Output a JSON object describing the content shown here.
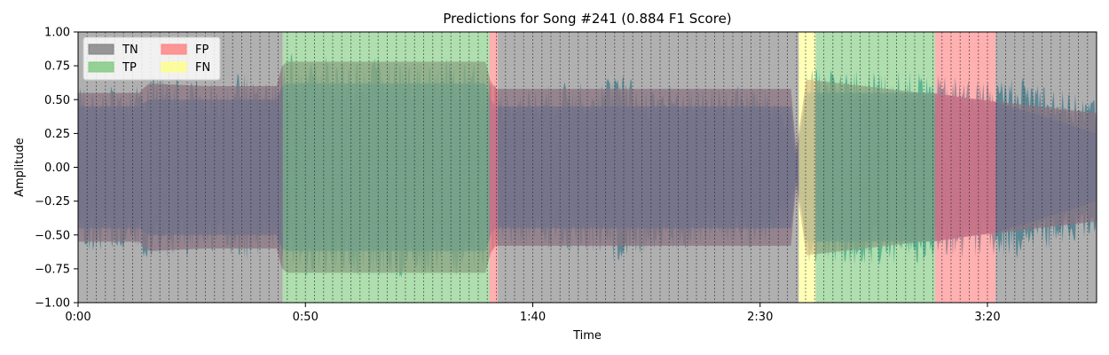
{
  "chart_data": {
    "type": "area",
    "title": "Predictions for Song #241 (0.884 F1 Score)",
    "xlabel": "Time",
    "ylabel": "Amplitude",
    "xlim": [
      0,
      224
    ],
    "ylim": [
      -1.0,
      1.0
    ],
    "x_ticks": [
      {
        "value": 0,
        "label": "0:00"
      },
      {
        "value": 50,
        "label": "0:50"
      },
      {
        "value": 100,
        "label": "1:40"
      },
      {
        "value": 150,
        "label": "2:30"
      },
      {
        "value": 200,
        "label": "3:20"
      }
    ],
    "y_ticks": [
      {
        "value": 1.0,
        "label": "1.00"
      },
      {
        "value": 0.75,
        "label": "0.75"
      },
      {
        "value": 0.5,
        "label": "0.50"
      },
      {
        "value": 0.25,
        "label": "0.25"
      },
      {
        "value": 0.0,
        "label": "0.00"
      },
      {
        "value": -0.25,
        "label": "−0.25"
      },
      {
        "value": -0.5,
        "label": "−0.50"
      },
      {
        "value": -0.75,
        "label": "−0.75"
      },
      {
        "value": -1.0,
        "label": "−1.00"
      }
    ],
    "legend": {
      "placement": "top-left",
      "columns": 2,
      "items": [
        {
          "label": "TN",
          "color": "#808080"
        },
        {
          "label": "TP",
          "color": "#7ec97e"
        },
        {
          "label": "FP",
          "color": "#ff8080"
        },
        {
          "label": "FN",
          "color": "#ffff8a"
        }
      ]
    },
    "segments": [
      {
        "start": 0,
        "end": 45,
        "class": "TN"
      },
      {
        "start": 45,
        "end": 90.5,
        "class": "TP"
      },
      {
        "start": 90.5,
        "end": 92.3,
        "class": "FP"
      },
      {
        "start": 92.3,
        "end": 158.5,
        "class": "TN"
      },
      {
        "start": 158.5,
        "end": 162.2,
        "class": "FN"
      },
      {
        "start": 162.2,
        "end": 188.5,
        "class": "TP"
      },
      {
        "start": 188.5,
        "end": 201.8,
        "class": "FP"
      },
      {
        "start": 201.8,
        "end": 224,
        "class": "TN"
      }
    ],
    "beat_interval": 2.0,
    "envelope": {
      "waveform": [
        [
          0,
          0.62
        ],
        [
          6,
          0.62
        ],
        [
          12,
          0.6
        ],
        [
          15,
          0.68
        ],
        [
          20,
          0.68
        ],
        [
          28,
          0.65
        ],
        [
          32,
          0.6
        ],
        [
          35,
          0.7
        ],
        [
          40,
          0.68
        ],
        [
          44,
          0.62
        ],
        [
          46,
          0.85
        ],
        [
          50,
          0.83
        ],
        [
          60,
          0.8
        ],
        [
          70,
          0.82
        ],
        [
          80,
          0.8
        ],
        [
          88,
          0.82
        ],
        [
          91,
          0.65
        ],
        [
          93,
          0.58
        ],
        [
          100,
          0.6
        ],
        [
          106,
          0.62
        ],
        [
          110,
          0.68
        ],
        [
          114,
          0.62
        ],
        [
          118,
          0.72
        ],
        [
          122,
          0.65
        ],
        [
          130,
          0.62
        ],
        [
          140,
          0.6
        ],
        [
          146,
          0.62
        ],
        [
          152,
          0.58
        ],
        [
          156,
          0.45
        ],
        [
          158,
          0.08
        ],
        [
          160,
          0.72
        ],
        [
          165,
          0.75
        ],
        [
          175,
          0.72
        ],
        [
          185,
          0.72
        ],
        [
          189,
          0.68
        ],
        [
          195,
          0.68
        ],
        [
          201,
          0.65
        ],
        [
          206,
          0.68
        ],
        [
          212,
          0.66
        ],
        [
          218,
          0.55
        ],
        [
          224,
          0.52
        ]
      ],
      "rms_outer": [
        [
          0,
          0.55
        ],
        [
          14,
          0.55
        ],
        [
          15,
          0.62
        ],
        [
          28,
          0.6
        ],
        [
          44,
          0.6
        ],
        [
          45,
          0.78
        ],
        [
          90,
          0.78
        ],
        [
          91,
          0.58
        ],
        [
          157,
          0.58
        ],
        [
          158,
          0.1
        ],
        [
          160,
          0.65
        ],
        [
          224,
          0.4
        ]
      ],
      "rms_inner": [
        [
          0,
          0.45
        ],
        [
          14,
          0.45
        ],
        [
          15,
          0.5
        ],
        [
          44,
          0.5
        ],
        [
          45,
          0.62
        ],
        [
          90,
          0.62
        ],
        [
          91,
          0.45
        ],
        [
          157,
          0.45
        ],
        [
          158,
          0.06
        ],
        [
          160,
          0.55
        ],
        [
          188,
          0.55
        ],
        [
          202,
          0.48
        ],
        [
          210,
          0.4
        ],
        [
          224,
          0.25
        ]
      ]
    },
    "colors": {
      "TN": "#808080",
      "TP": "#7ec97e",
      "FP": "#ff8080",
      "FN": "#ffff8a",
      "waveform": "#1b8fb4",
      "rms_outer": "#a06488",
      "rms_inner": "#5e5f9e",
      "beat_line": "#222222"
    }
  }
}
